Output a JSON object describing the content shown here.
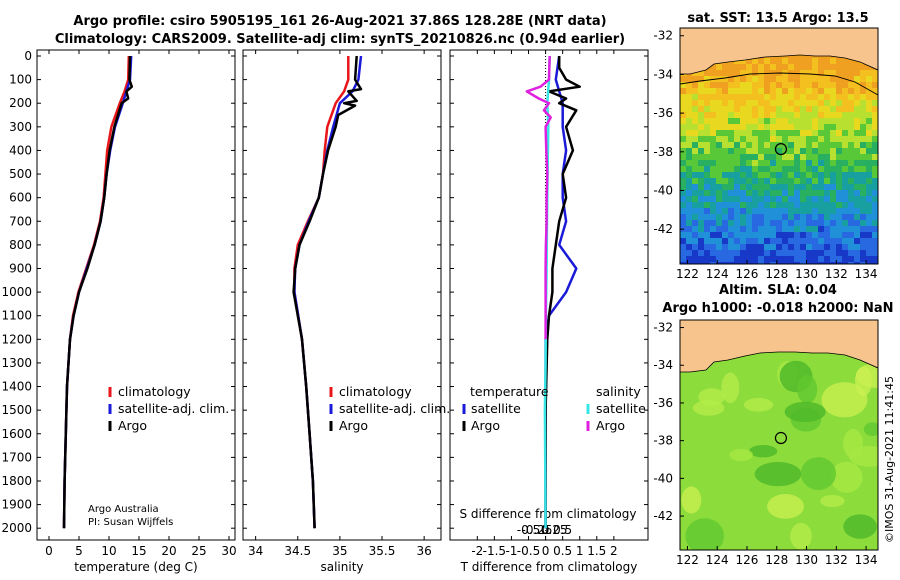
{
  "colors": {
    "climatology": "#e8161a",
    "satellite_adj_clim": "#1a1ad8",
    "argo_temp": "#000000",
    "satellite_sal": "#38e6e6",
    "argo_sal": "#e020e0"
  },
  "header": {
    "line1": "Argo profile: csiro 5905195_161 26-Aug-2021 37.86S 128.28E (NRT data)",
    "line2": "Climatology: CARS2009. Satellite-adj clim: synTS_20210826.nc (0.94d earlier)"
  },
  "depth_ticks": [
    "0",
    "100",
    "200",
    "300",
    "400",
    "500",
    "600",
    "700",
    "800",
    "900",
    "1000",
    "1100",
    "1200",
    "1300",
    "1400",
    "1500",
    "1600",
    "1700",
    "1800",
    "1900",
    "2000"
  ],
  "footer_note": {
    "line1": "Argo Australia",
    "line2": "PI: Susan Wijffels"
  },
  "chart_data": [
    {
      "type": "line",
      "name": "temperature",
      "xlabel": "temperature (deg C)",
      "xlim": [
        -2,
        31
      ],
      "ylim": [
        2050,
        0
      ],
      "xticks": [
        "0",
        "5",
        "10",
        "15",
        "20",
        "25",
        "30"
      ],
      "legend": [
        "climatology",
        "satellite-adj. clim.",
        "Argo"
      ],
      "series": [
        {
          "name": "climatology",
          "depth": [
            0,
            100,
            150,
            200,
            300,
            400,
            500,
            600,
            700,
            800,
            900,
            1000,
            1100,
            1200,
            1400,
            1600,
            1800,
            2000
          ],
          "values": [
            13.3,
            13.2,
            12.6,
            11.8,
            10.4,
            9.7,
            9.4,
            9.1,
            8.5,
            7.5,
            6.2,
            4.9,
            4.0,
            3.5,
            3.0,
            2.8,
            2.6,
            2.5
          ]
        },
        {
          "name": "satellite-adj. clim.",
          "depth": [
            0,
            100,
            150,
            200,
            300,
            400,
            500,
            600,
            700,
            800,
            900,
            1000,
            1100,
            1200,
            1400,
            1600,
            1800,
            2000
          ],
          "values": [
            13.7,
            13.5,
            12.9,
            12.3,
            11.0,
            10.2,
            9.6,
            9.2,
            8.6,
            7.6,
            6.3,
            5.0,
            4.1,
            3.5,
            3.0,
            2.8,
            2.6,
            2.5
          ]
        },
        {
          "name": "Argo",
          "depth": [
            0,
            100,
            130,
            150,
            180,
            200,
            300,
            400,
            500,
            600,
            700,
            800,
            900,
            1000,
            1100,
            1200,
            1400,
            1600,
            1800,
            2000
          ],
          "values": [
            13.5,
            13.4,
            13.8,
            12.9,
            13.2,
            12.1,
            10.9,
            10.1,
            9.6,
            9.2,
            8.6,
            7.6,
            6.4,
            5.0,
            4.1,
            3.5,
            3.0,
            2.8,
            2.6,
            2.5
          ]
        }
      ]
    },
    {
      "type": "line",
      "name": "salinity",
      "xlabel": "salinity",
      "xlim": [
        33.85,
        36.2
      ],
      "ylim": [
        2050,
        0
      ],
      "xticks": [
        "34",
        "34.5",
        "35",
        "35.5",
        "36"
      ],
      "legend": [
        "climatology",
        "satellite-adj. clim.",
        "Argo"
      ],
      "series": [
        {
          "name": "climatology",
          "depth": [
            0,
            100,
            150,
            200,
            300,
            400,
            500,
            600,
            700,
            800,
            900,
            1000,
            1200,
            1400,
            1600,
            1800,
            2000
          ],
          "values": [
            35.1,
            35.1,
            35.05,
            34.95,
            34.85,
            34.82,
            34.8,
            34.75,
            34.62,
            34.5,
            34.46,
            34.46,
            34.55,
            34.6,
            34.64,
            34.68,
            34.7
          ]
        },
        {
          "name": "satellite-adj. clim.",
          "depth": [
            0,
            100,
            150,
            200,
            300,
            400,
            500,
            600,
            700,
            800,
            900,
            1000,
            1200,
            1400,
            1600,
            1800,
            2000
          ],
          "values": [
            35.25,
            35.22,
            35.15,
            35.0,
            34.92,
            34.85,
            34.8,
            34.75,
            34.63,
            34.52,
            34.47,
            34.46,
            34.55,
            34.6,
            34.64,
            34.68,
            34.7
          ]
        },
        {
          "name": "Argo",
          "depth": [
            0,
            100,
            140,
            150,
            190,
            200,
            210,
            250,
            300,
            400,
            500,
            600,
            700,
            800,
            900,
            1000,
            1200,
            1400,
            1600,
            1800,
            2000
          ],
          "values": [
            35.2,
            35.18,
            35.25,
            35.1,
            35.2,
            35.05,
            35.18,
            34.98,
            34.95,
            34.86,
            34.8,
            34.75,
            34.64,
            34.52,
            34.47,
            34.45,
            34.55,
            34.6,
            34.64,
            34.68,
            34.7
          ]
        }
      ]
    },
    {
      "type": "line",
      "name": "differences",
      "xlabel": "T difference from climatology",
      "xlabel_top": "S difference from climatology",
      "xlim": [
        -2.8,
        3.0
      ],
      "ylim": [
        2050,
        0
      ],
      "xticks": [
        "-2",
        "-1.5",
        "-1",
        "-0.5",
        "0",
        "0.5",
        "1",
        "1.5",
        "2"
      ],
      "xticks_s": [
        "-0.5",
        "-0.25",
        "0",
        "0.25",
        "0.5"
      ],
      "legend_temperature": {
        "title": "temperature",
        "items": [
          "satellite",
          "Argo"
        ]
      },
      "legend_salinity": {
        "title": "salinity",
        "items": [
          "satellite",
          "Argo"
        ]
      },
      "series": [
        {
          "name": "T satellite",
          "depth": [
            0,
            100,
            200,
            300,
            400,
            500,
            600,
            700,
            800,
            900,
            1000,
            1100,
            1200,
            1500,
            2000
          ],
          "values": [
            0.4,
            0.3,
            0.5,
            0.5,
            0.6,
            0.5,
            0.5,
            0.6,
            0.4,
            0.9,
            0.6,
            0.1,
            0.0,
            0.0,
            0.0
          ]
        },
        {
          "name": "T Argo",
          "depth": [
            0,
            50,
            100,
            130,
            150,
            180,
            200,
            230,
            300,
            400,
            500,
            600,
            700,
            800,
            900,
            1000,
            1100,
            1200,
            1500,
            2000
          ],
          "values": [
            0.4,
            0.4,
            0.6,
            1.0,
            0.1,
            0.6,
            0.4,
            0.9,
            0.6,
            0.8,
            0.5,
            0.6,
            0.4,
            0.3,
            0.2,
            0.2,
            0.1,
            0.05,
            0.0,
            0.0
          ]
        },
        {
          "name": "S satellite",
          "depth": [
            0,
            100,
            200,
            300,
            500,
            700,
            900,
            1100,
            1300,
            1500,
            2000
          ],
          "values": [
            0.12,
            0.1,
            0.05,
            0.08,
            0.06,
            0.04,
            0.03,
            0.01,
            0.0,
            -0.02,
            0.0
          ]
        },
        {
          "name": "S Argo",
          "depth": [
            0,
            50,
            100,
            130,
            150,
            180,
            200,
            230,
            260,
            300,
            400,
            500,
            600,
            700,
            800,
            900,
            1000,
            1100,
            1200
          ],
          "values": [
            0.12,
            0.11,
            0.1,
            -0.15,
            -0.55,
            -0.2,
            0.1,
            -0.05,
            0.15,
            0.0,
            0.02,
            0.05,
            0.03,
            0.03,
            0.01,
            0.0,
            0.0,
            0.0,
            0.0
          ]
        }
      ]
    }
  ],
  "sst_map": {
    "title": "sat. SST: 13.5 Argo: 13.5",
    "yticks": [
      "-32",
      "-34",
      "-36",
      "-38",
      "-40",
      "-42"
    ],
    "xticks": [
      "122",
      "124",
      "126",
      "128",
      "130",
      "132",
      "134"
    ],
    "marker_lon": 128.28,
    "marker_lat": -37.86
  },
  "sla_map": {
    "title_line1": "Altim. SLA: 0.04",
    "title_line2": "Argo h1000: -0.018 h2000: NaN",
    "yticks": [
      "-32",
      "-34",
      "-36",
      "-38",
      "-40",
      "-42"
    ],
    "xticks": [
      "122",
      "124",
      "126",
      "128",
      "130",
      "132",
      "134"
    ],
    "marker_lon": 128.28,
    "marker_lat": -37.86
  },
  "credit": "©IMOS 31-Aug-2021 11:41:45"
}
